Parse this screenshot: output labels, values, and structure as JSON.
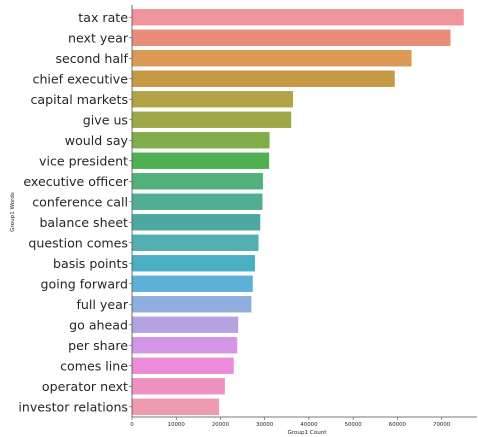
{
  "chart_data": {
    "type": "bar",
    "orientation": "horizontal",
    "categories": [
      "tax rate",
      "next year",
      "second half",
      "chief executive",
      "capital markets",
      "give us",
      "would say",
      "vice president",
      "executive officer",
      "conference call",
      "balance sheet",
      "question comes",
      "basis points",
      "going forward",
      "full year",
      "go ahead",
      "per share",
      "comes line",
      "operator next",
      "investor relations"
    ],
    "values": [
      75000,
      72000,
      63200,
      59400,
      36400,
      36000,
      31100,
      31000,
      29600,
      29500,
      29000,
      28600,
      27800,
      27300,
      27000,
      24000,
      23800,
      23000,
      21000,
      19700
    ],
    "colors": [
      "#f0949c",
      "#ea8d78",
      "#db9a53",
      "#c59a45",
      "#b2a344",
      "#9fa847",
      "#80ad47",
      "#4fb052",
      "#50b17b",
      "#52ae93",
      "#4ca8a0",
      "#52aeb0",
      "#4bafc4",
      "#5db1d9",
      "#8fadde",
      "#b4a2e3",
      "#d395e5",
      "#ec8cd8",
      "#ef92c2",
      "#ee9aaf"
    ],
    "xlabel": "Group1 Count",
    "ylabel": "Group1 Words",
    "xticks": [
      0,
      10000,
      20000,
      30000,
      40000,
      50000,
      60000,
      70000
    ],
    "xlim": [
      0,
      78000
    ],
    "grid": false,
    "legend": "none"
  }
}
